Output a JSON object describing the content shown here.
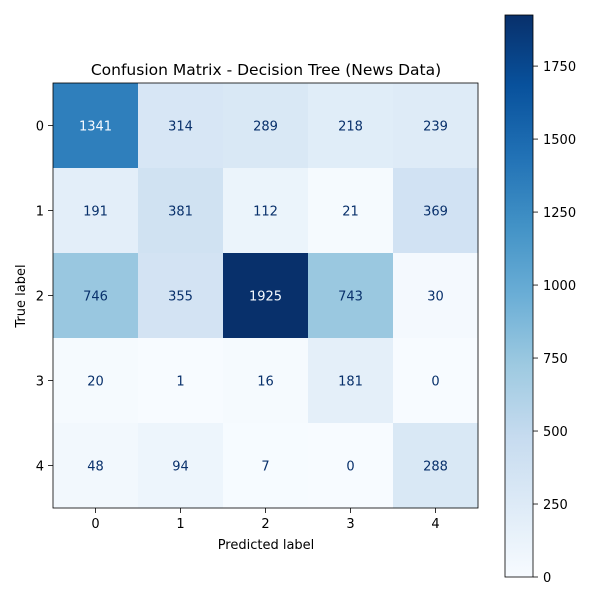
{
  "chart_data": {
    "type": "heatmap",
    "title": "Confusion Matrix - Decision Tree (News Data)",
    "xlabel": "Predicted label",
    "ylabel": "True label",
    "x_categories": [
      "0",
      "1",
      "2",
      "3",
      "4"
    ],
    "y_categories": [
      "0",
      "1",
      "2",
      "3",
      "4"
    ],
    "values": [
      [
        1341,
        314,
        289,
        218,
        239
      ],
      [
        191,
        381,
        112,
        21,
        369
      ],
      [
        746,
        355,
        1925,
        743,
        30
      ],
      [
        20,
        1,
        16,
        181,
        0
      ],
      [
        48,
        94,
        7,
        0,
        288
      ]
    ],
    "colormap": "Blues",
    "vmin": 0,
    "vmax": 1925,
    "colorbar_ticks": [
      0,
      250,
      500,
      750,
      1000,
      1250,
      1500,
      1750
    ],
    "grid": false,
    "colors": {
      "cmap_low": "#f7fbff",
      "cmap_high": "#08306b",
      "text_light": "#f7fbff",
      "text_dark": "#08306b"
    }
  }
}
